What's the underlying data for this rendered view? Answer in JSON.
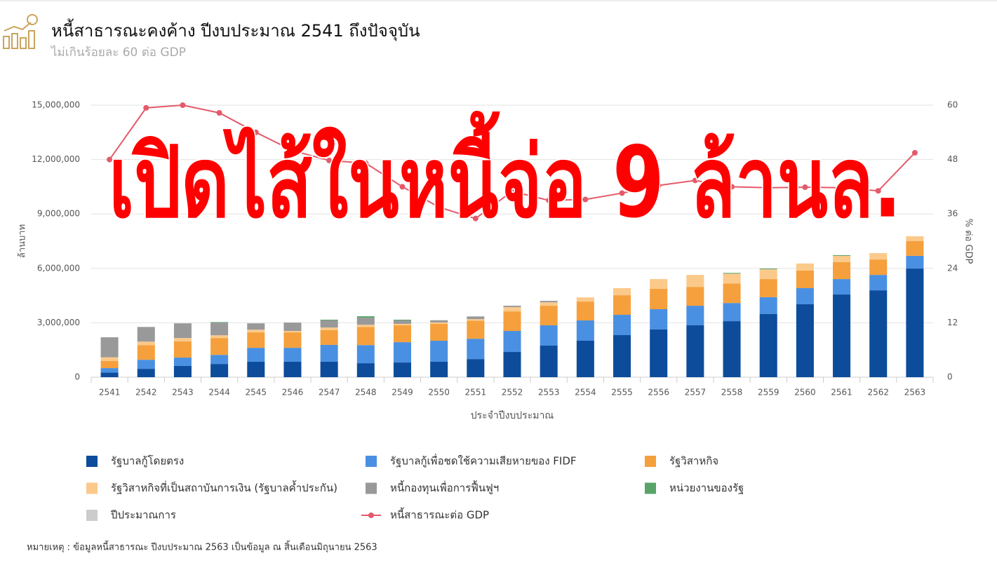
{
  "header": {
    "title": "หนี้สาธารณะคงค้าง ปีงบประมาณ 2541 ถึงปัจจุบัน",
    "subtitle": "ไม่เกินร้อยละ 60 ต่อ GDP"
  },
  "chart_data": {
    "type": "bar",
    "stacked": true,
    "annotation": "เปิดไส้ในหนี้จ่อ 9 ล้านล.",
    "x_label": "ประจำปีงบประมาณ",
    "y_label": "ล้านบาท",
    "y2_label": "% ต่อ GDP",
    "categories": [
      "2541",
      "2542",
      "2543",
      "2544",
      "2545",
      "2546",
      "2547",
      "2548",
      "2549",
      "2550",
      "2551",
      "2552",
      "2553",
      "2554",
      "2555",
      "2556",
      "2557",
      "2558",
      "2559",
      "2560",
      "2561",
      "2562",
      "2563"
    ],
    "ylim": [
      0,
      15000000
    ],
    "yticks": [
      0,
      {
        "value": 3000000,
        "label": "3,000,000"
      },
      {
        "value": 6000000,
        "label": "6,000,000"
      },
      {
        "value": 9000000,
        "label": "9,000,000"
      },
      {
        "value": 12000000,
        "label": "12,000,000"
      },
      {
        "value": 15000000,
        "label": "15,000,000"
      }
    ],
    "y2lim": [
      0,
      60
    ],
    "y2ticks": [
      0,
      12,
      24,
      36,
      48,
      60
    ],
    "grid": true,
    "series": [
      {
        "name": "รัฐบาลกู้โดยตรง",
        "color": "#0d4c9b",
        "values": [
          250000,
          460000,
          620000,
          730000,
          850000,
          850000,
          850000,
          770000,
          810000,
          850000,
          1000000,
          1390000,
          1740000,
          2010000,
          2320000,
          2630000,
          2860000,
          3090000,
          3480000,
          4020000,
          4560000,
          4790000,
          5990000
        ]
      },
      {
        "name": "รัฐบาลกู้เพื่อชดใช้ความเสียหายของ FIDF",
        "color": "#4a90e2",
        "values": [
          250000,
          500000,
          460000,
          500000,
          770000,
          770000,
          930000,
          1000000,
          1120000,
          1160000,
          1120000,
          1160000,
          1120000,
          1120000,
          1120000,
          1120000,
          1080000,
          1000000,
          930000,
          890000,
          850000,
          850000,
          700000
        ]
      },
      {
        "name": "รัฐวิสาหกิจ",
        "color": "#f5a03c",
        "values": [
          400000,
          810000,
          890000,
          930000,
          850000,
          850000,
          810000,
          1000000,
          930000,
          930000,
          1000000,
          1080000,
          1080000,
          1040000,
          1080000,
          1120000,
          1040000,
          1080000,
          1000000,
          970000,
          930000,
          850000,
          810000
        ]
      },
      {
        "name": "รัฐวิสาหกิจที่เป็นสถาบันการเงิน (รัฐบาลค้ำประกัน)",
        "color": "#fbc98a",
        "values": [
          200000,
          190000,
          190000,
          150000,
          150000,
          80000,
          150000,
          120000,
          80000,
          80000,
          80000,
          230000,
          190000,
          230000,
          390000,
          540000,
          660000,
          540000,
          540000,
          390000,
          350000,
          350000,
          270000
        ]
      },
      {
        "name": "หนี้กองทุนเพื่อการฟื้นฟูฯ",
        "color": "#999999",
        "values": [
          1100000,
          810000,
          810000,
          700000,
          350000,
          460000,
          390000,
          390000,
          190000,
          120000,
          150000,
          80000,
          80000,
          null,
          null,
          null,
          null,
          null,
          null,
          null,
          null,
          null,
          null
        ]
      },
      {
        "name": "หน่วยงานของรัฐ",
        "color": "#5aa469",
        "values": [
          null,
          null,
          null,
          30000,
          null,
          null,
          40000,
          80000,
          40000,
          null,
          null,
          null,
          null,
          null,
          null,
          null,
          null,
          40000,
          40000,
          null,
          40000,
          null,
          null
        ]
      },
      {
        "name": "ปีประมาณการ",
        "color": "#cccccc",
        "values": [
          null,
          null,
          null,
          null,
          null,
          null,
          null,
          null,
          null,
          null,
          null,
          null,
          null,
          null,
          null,
          null,
          null,
          null,
          null,
          null,
          null,
          null,
          null
        ]
      },
      {
        "name": "หนี้สาธารณะต่อ GDP",
        "color": "#e45a6a",
        "type": "line",
        "axis": "y2",
        "values": [
          48,
          59.4,
          60,
          58.3,
          54,
          50,
          47.8,
          47.2,
          42,
          37.5,
          35,
          41,
          39,
          39.2,
          40.6,
          42.3,
          43.4,
          42,
          41.8,
          41.9,
          41.8,
          41.1,
          49.5
        ]
      }
    ]
  },
  "note": "หมายเหตุ : ข้อมูลหนี้สาธารณะ ปีงบประมาณ 2563 เป็นข้อมูล ณ สิ้นเดือนมิถุนายน 2563"
}
